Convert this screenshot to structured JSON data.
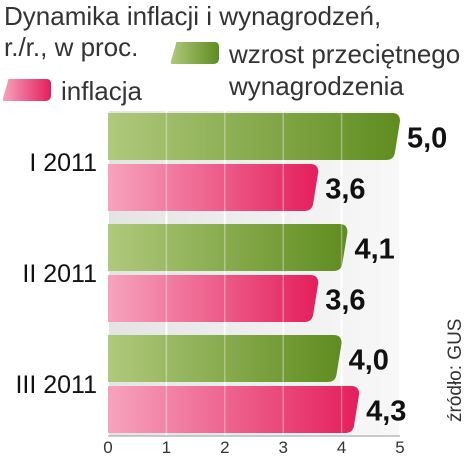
{
  "chart_data": {
    "type": "bar",
    "orientation": "horizontal",
    "title_lines": [
      "Dynamika inflacji i wynagrodzeń,",
      "r./r., w proc."
    ],
    "categories": [
      "I 2011",
      "II 2011",
      "III 2011"
    ],
    "series": [
      {
        "name": "wzrost przeciętnego wynagrodzenia",
        "legend_lines": [
          "wzrost przeciętnego",
          "wynagrodzenia"
        ],
        "values": [
          5.0,
          4.1,
          4.0
        ],
        "value_labels": [
          "5,0",
          "4,1",
          "4,0"
        ],
        "color": "#6f9a2e"
      },
      {
        "name": "inflacja",
        "legend_lines": [
          "inflacja"
        ],
        "values": [
          3.6,
          3.6,
          4.3
        ],
        "value_labels": [
          "3,6",
          "3,6",
          "4,3"
        ],
        "color": "#e8316a"
      }
    ],
    "x_ticks": [
      "0",
      "1",
      "2",
      "3",
      "4",
      "5"
    ],
    "xlim": [
      0,
      5
    ],
    "grid": true,
    "legend_placement": "top",
    "source": "źródło: GUS"
  },
  "colors": {
    "green_dark": "#5d8a1f",
    "green_light": "#aec67a",
    "pink_dark": "#e41e5c",
    "pink_light": "#f59ab8",
    "plot_bg_left": "#e6e6e6",
    "plot_bg_right": "#f7f7f7"
  }
}
